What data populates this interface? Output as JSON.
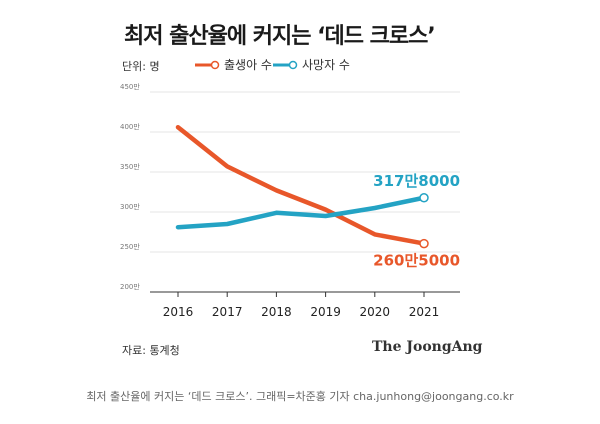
{
  "title": "최저 출산율에 커지는 ‘데드 크로스’",
  "unit_label": "단위: 명",
  "source": "자료: 통계청",
  "brand": "The JoongAng",
  "caption": "최저 출산율에 커지는 ‘데드 크로스’. 그래픽=차준홍 기자 cha.junhong@joongang.co.kr",
  "colors": {
    "births": "#e8572a",
    "deaths": "#24a3c4",
    "grid": "#dddddd",
    "axis": "#333333"
  },
  "chart_data": {
    "type": "line",
    "title": "최저 출산율에 커지는 ‘데드 크로스’",
    "xlabel": "",
    "ylabel": "단위: 명",
    "x": [
      "2016",
      "2017",
      "2018",
      "2019",
      "2020",
      "2021"
    ],
    "ylim": [
      200,
      450
    ],
    "yticks": [
      200,
      250,
      300,
      350,
      400,
      450
    ],
    "ytick_labels": [
      "200만",
      "250만",
      "300만",
      "350만",
      "400만",
      "450만"
    ],
    "series": [
      {
        "name": "출생아 수",
        "key": "births",
        "values": [
          406,
          357,
          327,
          303,
          272,
          260.5
        ]
      },
      {
        "name": "사망자 수",
        "key": "deaths",
        "values": [
          281,
          285,
          299,
          295,
          305,
          317.8
        ]
      }
    ],
    "annotations": [
      {
        "series": "deaths",
        "label": "317만8000"
      },
      {
        "series": "births",
        "label": "260만5000"
      }
    ]
  }
}
